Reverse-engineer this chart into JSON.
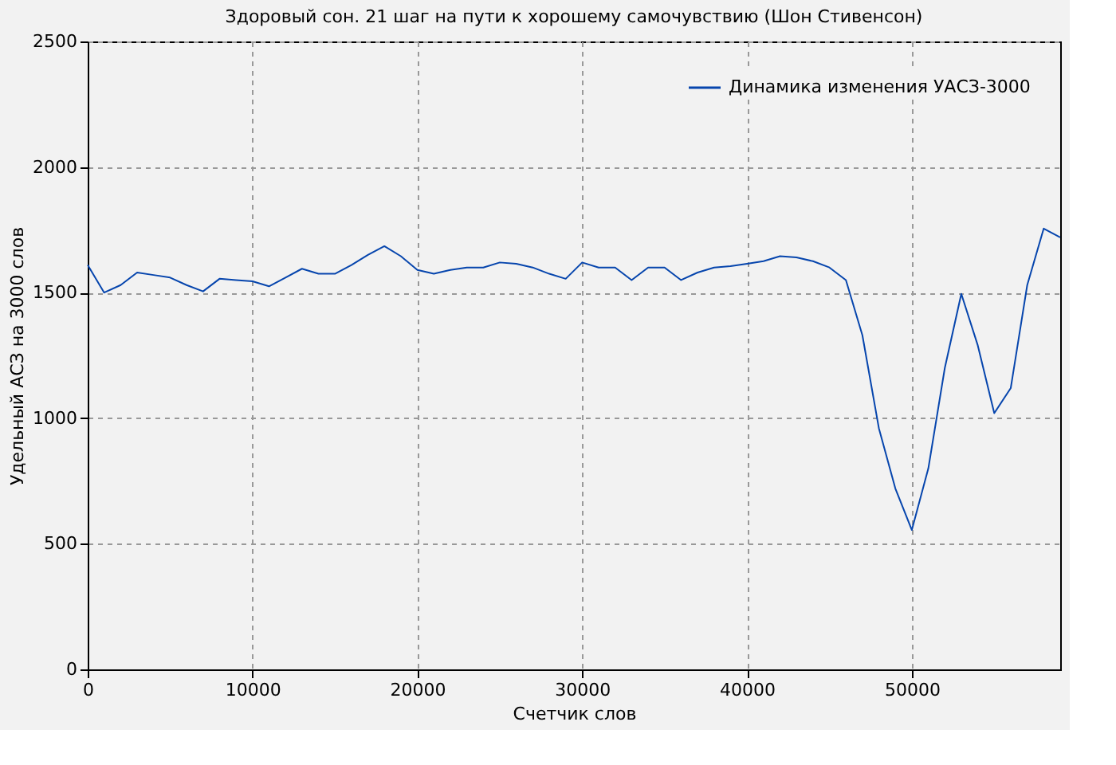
{
  "chart_data": {
    "type": "line",
    "title": "Здоровый сон. 21 шаг на пути к хорошему самочувствию (Шон Стивенсон)",
    "xlabel": "Счетчик слов",
    "ylabel": "Удельный АСЗ на 3000 слов",
    "x": [
      0,
      1000,
      2000,
      3000,
      4000,
      5000,
      6000,
      7000,
      8000,
      9000,
      10000,
      11000,
      12000,
      13000,
      14000,
      15000,
      16000,
      17000,
      18000,
      19000,
      20000,
      21000,
      22000,
      23000,
      24000,
      25000,
      26000,
      27000,
      28000,
      29000,
      30000,
      31000,
      32000,
      33000,
      34000,
      35000,
      36000,
      37000,
      38000,
      39000,
      40000,
      41000,
      42000,
      43000,
      44000,
      45000,
      46000,
      47000,
      48000,
      49000,
      50000,
      51000,
      52000,
      53000,
      54000,
      55000,
      56000,
      57000,
      58000,
      59000
    ],
    "series": [
      {
        "name": "Динамика изменения УАСЗ-3000",
        "color": "#0645ad",
        "values": [
          1610,
          1500,
          1530,
          1580,
          1570,
          1560,
          1530,
          1505,
          1555,
          1550,
          1545,
          1525,
          1560,
          1595,
          1575,
          1575,
          1610,
          1650,
          1685,
          1645,
          1590,
          1575,
          1590,
          1600,
          1600,
          1620,
          1615,
          1600,
          1575,
          1555,
          1620,
          1600,
          1600,
          1550,
          1600,
          1600,
          1550,
          1580,
          1600,
          1605,
          1615,
          1625,
          1645,
          1640,
          1625,
          1600,
          1550,
          1330,
          960,
          720,
          555,
          800,
          1200,
          1495,
          1290,
          1020,
          1120,
          1530,
          1755,
          1720
        ]
      }
    ],
    "xlim": [
      0,
      59000
    ],
    "ylim": [
      0,
      2500
    ],
    "xticks": [
      0,
      10000,
      20000,
      30000,
      40000,
      50000
    ],
    "yticks": [
      0,
      500,
      1000,
      1500,
      2000,
      2500
    ],
    "grid": true,
    "legend": "top right",
    "line_style": "solid",
    "marker": "none"
  }
}
